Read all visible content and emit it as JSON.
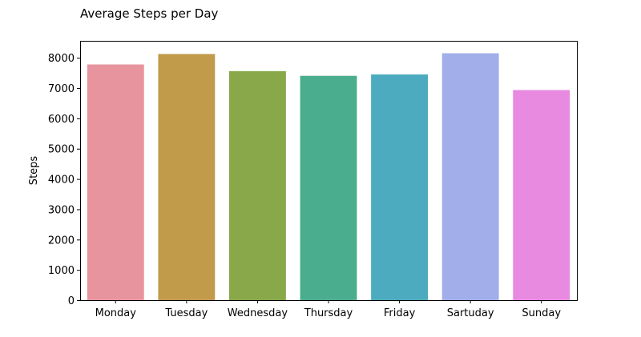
{
  "chart_data": {
    "type": "bar",
    "title": "Average Steps per Day",
    "xlabel": "",
    "ylabel": "Steps",
    "categories": [
      "Monday",
      "Tuesday",
      "Wednesday",
      "Thursday",
      "Friday",
      "Sartuday",
      "Sunday"
    ],
    "values": [
      7780,
      8125,
      7560,
      7405,
      7450,
      8150,
      6935
    ],
    "colors": [
      "#e8949f",
      "#c19a4a",
      "#88a84a",
      "#4aae8e",
      "#4cabbf",
      "#a1aeea",
      "#e78ae0"
    ],
    "ylim": [
      0,
      8560
    ],
    "yticks": [
      0,
      1000,
      2000,
      3000,
      4000,
      5000,
      6000,
      7000,
      8000
    ],
    "grid": false,
    "legend": "none"
  }
}
